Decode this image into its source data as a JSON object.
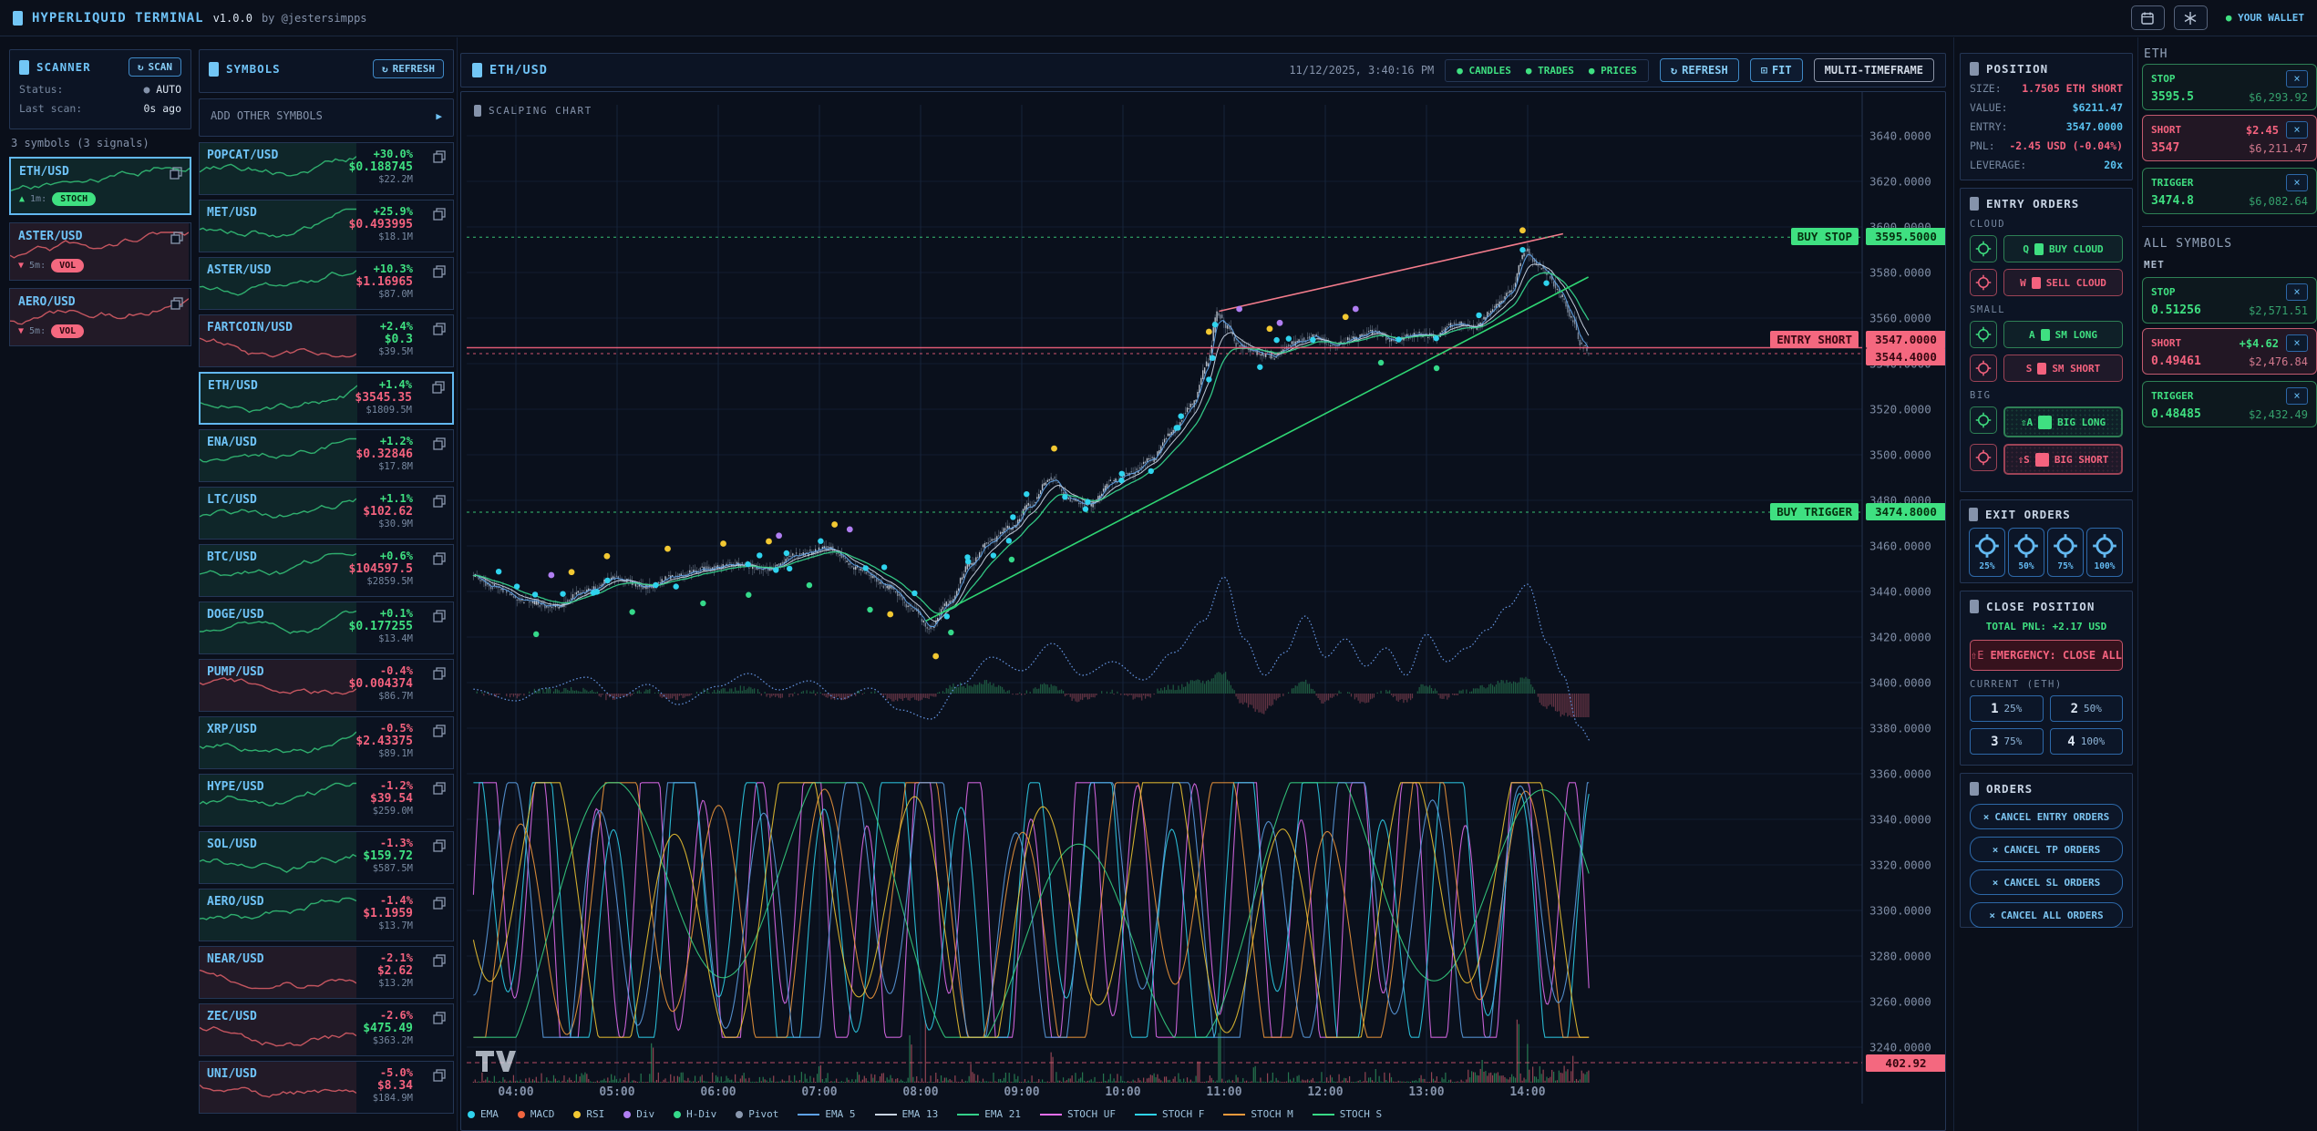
{
  "colors": {
    "accent": "#72c6f5",
    "green": "#3fe081",
    "red": "#f4627e",
    "cyan": "#59c2f0"
  },
  "icons": {
    "refresh": "↻",
    "play": "▶",
    "up_triangle": "▲",
    "down_triangle": "▼",
    "close": "×",
    "dot": "●",
    "fit": "⊡"
  },
  "header": {
    "title": "HYPERLIQUID TERMINAL",
    "version": "v1.0.0",
    "byline": "by @jestersimpps",
    "wallet_label": "YOUR WALLET"
  },
  "scanner": {
    "title": "SCANNER",
    "scan_button": "SCAN",
    "status_label": "Status:",
    "status_value": "AUTO",
    "last_scan_label": "Last scan:",
    "last_scan_value": "0s ago",
    "summary": "3 symbols (3 signals)",
    "items": [
      {
        "symbol": "ETH/USD",
        "dir": "up",
        "timeframe": "1m:",
        "signal": "STOCH",
        "signal_color": "green",
        "spark": "green",
        "selected": true
      },
      {
        "symbol": "ASTER/USD",
        "dir": "down",
        "timeframe": "5m:",
        "signal": "VOL",
        "signal_color": "red",
        "spark": "red",
        "selected": false
      },
      {
        "symbol": "AERO/USD",
        "dir": "down",
        "timeframe": "5m:",
        "signal": "VOL",
        "signal_color": "red",
        "spark": "red",
        "selected": false
      }
    ]
  },
  "symbols": {
    "title": "SYMBOLS",
    "refresh_button": "REFRESH",
    "add_row": "ADD OTHER SYMBOLS",
    "items": [
      {
        "sym": "POPCAT/USD",
        "chg": "+30.0%",
        "chg_c": "g",
        "price": "$0.188745",
        "price_c": "g",
        "vol": "$22.2M",
        "spark": "green",
        "sel": false
      },
      {
        "sym": "MET/USD",
        "chg": "+25.9%",
        "chg_c": "g",
        "price": "$0.493995",
        "price_c": "r",
        "vol": "$18.1M",
        "spark": "green",
        "sel": false
      },
      {
        "sym": "ASTER/USD",
        "chg": "+10.3%",
        "chg_c": "g",
        "price": "$1.16965",
        "price_c": "r",
        "vol": "$87.0M",
        "spark": "green",
        "sel": false
      },
      {
        "sym": "FARTCOIN/USD",
        "chg": "+2.4%",
        "chg_c": "g",
        "price": "$0.3",
        "price_c": "g",
        "vol": "$39.5M",
        "spark": "red",
        "sel": false
      },
      {
        "sym": "ETH/USD",
        "chg": "+1.4%",
        "chg_c": "g",
        "price": "$3545.35",
        "price_c": "r",
        "vol": "$1809.5M",
        "spark": "green",
        "sel": true
      },
      {
        "sym": "ENA/USD",
        "chg": "+1.2%",
        "chg_c": "g",
        "price": "$0.32846",
        "price_c": "r",
        "vol": "$17.8M",
        "spark": "green",
        "sel": false
      },
      {
        "sym": "LTC/USD",
        "chg": "+1.1%",
        "chg_c": "g",
        "price": "$102.62",
        "price_c": "r",
        "vol": "$30.9M",
        "spark": "green",
        "sel": false
      },
      {
        "sym": "BTC/USD",
        "chg": "+0.6%",
        "chg_c": "g",
        "price": "$104597.5",
        "price_c": "r",
        "vol": "$2859.5M",
        "spark": "green",
        "sel": false
      },
      {
        "sym": "DOGE/USD",
        "chg": "+0.1%",
        "chg_c": "g",
        "price": "$0.177255",
        "price_c": "g",
        "vol": "$13.4M",
        "spark": "green",
        "sel": false
      },
      {
        "sym": "PUMP/USD",
        "chg": "-0.4%",
        "chg_c": "r",
        "price": "$0.004374",
        "price_c": "r",
        "vol": "$86.7M",
        "spark": "red",
        "sel": false
      },
      {
        "sym": "XRP/USD",
        "chg": "-0.5%",
        "chg_c": "r",
        "price": "$2.43375",
        "price_c": "r",
        "vol": "$89.1M",
        "spark": "green",
        "sel": false
      },
      {
        "sym": "HYPE/USD",
        "chg": "-1.2%",
        "chg_c": "r",
        "price": "$39.54",
        "price_c": "r",
        "vol": "$259.0M",
        "spark": "green",
        "sel": false
      },
      {
        "sym": "SOL/USD",
        "chg": "-1.3%",
        "chg_c": "r",
        "price": "$159.72",
        "price_c": "g",
        "vol": "$587.5M",
        "spark": "green",
        "sel": false
      },
      {
        "sym": "AERO/USD",
        "chg": "-1.4%",
        "chg_c": "r",
        "price": "$1.1959",
        "price_c": "r",
        "vol": "$13.7M",
        "spark": "green",
        "sel": false
      },
      {
        "sym": "NEAR/USD",
        "chg": "-2.1%",
        "chg_c": "r",
        "price": "$2.62",
        "price_c": "r",
        "vol": "$13.2M",
        "spark": "red",
        "sel": false
      },
      {
        "sym": "ZEC/USD",
        "chg": "-2.6%",
        "chg_c": "r",
        "price": "$475.49",
        "price_c": "g",
        "vol": "$363.2M",
        "spark": "red",
        "sel": false
      },
      {
        "sym": "UNI/USD",
        "chg": "-5.0%",
        "chg_c": "r",
        "price": "$8.34",
        "price_c": "r",
        "vol": "$184.9M",
        "spark": "red",
        "sel": false
      }
    ]
  },
  "chart": {
    "symbol": "ETH/USD",
    "subtitle": "SCALPING CHART",
    "timestamp": "11/12/2025, 3:40:16 PM",
    "toggles": [
      "CANDLES",
      "TRADES",
      "PRICES"
    ],
    "refresh_button": "REFRESH",
    "fit_button": "FIT",
    "mtf_button": "MULTI-TIMEFRAME",
    "legend": [
      {
        "label": "EMA",
        "swatch": "dot",
        "color": "#2fd3ee"
      },
      {
        "label": "MACD",
        "swatch": "dot",
        "color": "#f0653f"
      },
      {
        "label": "RSI",
        "swatch": "dot",
        "color": "#f2c832"
      },
      {
        "label": "Div",
        "swatch": "dot",
        "color": "#b07ef2"
      },
      {
        "label": "H-Div",
        "swatch": "dot",
        "color": "#35d98a"
      },
      {
        "label": "Pivot",
        "swatch": "dot",
        "color": "#8a98ae"
      },
      {
        "label": "EMA 5",
        "swatch": "line",
        "color": "#5ea2e8"
      },
      {
        "label": "EMA 13",
        "swatch": "line",
        "color": "#c9d4e2"
      },
      {
        "label": "EMA 21",
        "swatch": "line",
        "color": "#35d08a"
      },
      {
        "label": "STOCH UF",
        "swatch": "line",
        "color": "#e86ef5"
      },
      {
        "label": "STOCH F",
        "swatch": "line",
        "color": "#2fd3ee"
      },
      {
        "label": "STOCH M",
        "swatch": "line",
        "color": "#f59a3c"
      },
      {
        "label": "STOCH S",
        "swatch": "line",
        "color": "#38d986"
      }
    ]
  },
  "chart_data": {
    "type": "candlestick",
    "symbol": "ETH/USD",
    "timeframe_minutes": 1,
    "y_axis": {
      "min": 3240,
      "max": 3640,
      "step": 20,
      "tick_labels": [
        "3640.0000",
        "3620.0000",
        "3600.0000",
        "3580.0000",
        "3560.0000",
        "3540.0000",
        "3520.0000",
        "3500.0000",
        "3480.0000",
        "3460.0000",
        "3440.0000",
        "3420.0000",
        "3400.0000",
        "3380.0000",
        "3360.0000",
        "3340.0000",
        "3320.0000",
        "3300.0000",
        "3280.0000",
        "3260.0000",
        "3240.0000"
      ]
    },
    "x_axis": {
      "hours": [
        "04:00",
        "05:00",
        "06:00",
        "07:00",
        "08:00",
        "09:00",
        "10:00",
        "11:00",
        "12:00",
        "13:00",
        "14:00"
      ]
    },
    "price_lines": [
      {
        "label": "BUY STOP",
        "value_label": "3595.5000",
        "price": 3595.5,
        "color": "green",
        "style": "dotted"
      },
      {
        "label": "ENTRY SHORT",
        "value_label": "3547.0000",
        "price": 3547.0,
        "color": "red",
        "style": "solid"
      },
      {
        "label": "",
        "value_label": "3544.4000",
        "price": 3544.4,
        "color": "red",
        "style": "dotted"
      },
      {
        "label": "BUY TRIGGER",
        "value_label": "3474.8000",
        "price": 3474.8,
        "color": "green",
        "style": "dotted"
      }
    ],
    "bottom_line": {
      "value_label": "402.92",
      "color": "red",
      "style": "dashed"
    },
    "panes": [
      "price",
      "macd",
      "stochastic",
      "volume"
    ],
    "price_path": [
      [
        3.55,
        3448
      ],
      [
        3.8,
        3442
      ],
      [
        4.1,
        3436
      ],
      [
        4.4,
        3433
      ],
      [
        4.7,
        3440
      ],
      [
        5.0,
        3446
      ],
      [
        5.3,
        3442
      ],
      [
        5.6,
        3447
      ],
      [
        5.9,
        3450
      ],
      [
        6.2,
        3452
      ],
      [
        6.5,
        3450
      ],
      [
        6.8,
        3456
      ],
      [
        7.1,
        3459
      ],
      [
        7.4,
        3450
      ],
      [
        7.7,
        3442
      ],
      [
        7.95,
        3432
      ],
      [
        8.1,
        3424
      ],
      [
        8.3,
        3435
      ],
      [
        8.5,
        3452
      ],
      [
        8.7,
        3462
      ],
      [
        8.9,
        3468
      ],
      [
        9.1,
        3478
      ],
      [
        9.3,
        3490
      ],
      [
        9.5,
        3480
      ],
      [
        9.7,
        3478
      ],
      [
        9.9,
        3488
      ],
      [
        10.1,
        3492
      ],
      [
        10.3,
        3498
      ],
      [
        10.5,
        3510
      ],
      [
        10.7,
        3522
      ],
      [
        10.85,
        3540
      ],
      [
        10.95,
        3562
      ],
      [
        11.05,
        3556
      ],
      [
        11.15,
        3548
      ],
      [
        11.3,
        3545
      ],
      [
        11.5,
        3543
      ],
      [
        11.7,
        3549
      ],
      [
        11.9,
        3552
      ],
      [
        12.1,
        3548
      ],
      [
        12.3,
        3551
      ],
      [
        12.5,
        3554
      ],
      [
        12.7,
        3550
      ],
      [
        12.9,
        3553
      ],
      [
        13.1,
        3552
      ],
      [
        13.3,
        3558
      ],
      [
        13.5,
        3556
      ],
      [
        13.7,
        3565
      ],
      [
        13.85,
        3572
      ],
      [
        14.0,
        3590
      ],
      [
        14.1,
        3584
      ],
      [
        14.2,
        3580
      ],
      [
        14.35,
        3570
      ],
      [
        14.45,
        3560
      ],
      [
        14.55,
        3548
      ],
      [
        14.65,
        3544
      ]
    ],
    "trend_lines": [
      {
        "from": [
          8.05,
          3427
        ],
        "to": [
          14.6,
          3578
        ],
        "color": "#2fd673"
      },
      {
        "from": [
          10.95,
          3563
        ],
        "to": [
          14.35,
          3597
        ],
        "color": "#f47c8c"
      }
    ]
  },
  "position": {
    "title": "POSITION",
    "rows": [
      {
        "label": "SIZE:",
        "value": "1.7505 ETH SHORT",
        "color": "red"
      },
      {
        "label": "VALUE:",
        "value": "$6211.47",
        "color": "cyan"
      },
      {
        "label": "ENTRY:",
        "value": "3547.0000",
        "color": "cyan"
      },
      {
        "label": "PNL:",
        "value": "-2.45 USD (-0.04%)",
        "color": "red"
      },
      {
        "label": "LEVERAGE:",
        "value": "20x",
        "color": "cyan"
      }
    ]
  },
  "entry_orders": {
    "title": "ENTRY ORDERS",
    "groups": [
      {
        "label": "CLOUD",
        "big": false,
        "rows": [
          {
            "key": "Q",
            "label": "BUY CLOUD",
            "side": "green"
          },
          {
            "key": "W",
            "label": "SELL CLOUD",
            "side": "red"
          }
        ]
      },
      {
        "label": "SMALL",
        "big": false,
        "rows": [
          {
            "key": "A",
            "label": "SM LONG",
            "side": "green"
          },
          {
            "key": "S",
            "label": "SM SHORT",
            "side": "red"
          }
        ]
      },
      {
        "label": "BIG",
        "big": true,
        "rows": [
          {
            "key": "⇧A",
            "label": "BIG LONG",
            "side": "green"
          },
          {
            "key": "⇧S",
            "label": "BIG SHORT",
            "side": "red"
          }
        ]
      }
    ]
  },
  "exit_orders": {
    "title": "EXIT ORDERS",
    "percents": [
      "25%",
      "50%",
      "75%",
      "100%"
    ]
  },
  "close_position": {
    "title": "CLOSE POSITION",
    "total_pnl": "TOTAL PNL: +2.17 USD",
    "emergency_key": "⇧E",
    "emergency_label": "EMERGENCY: CLOSE ALL",
    "current_label": "CURRENT (ETH)",
    "buttons": [
      {
        "key": "1",
        "label": "25%"
      },
      {
        "key": "2",
        "label": "50%"
      },
      {
        "key": "3",
        "label": "75%"
      },
      {
        "key": "4",
        "label": "100%"
      }
    ]
  },
  "orders": {
    "title": "ORDERS",
    "buttons": [
      "CANCEL ENTRY ORDERS",
      "CANCEL TP ORDERS",
      "CANCEL SL ORDERS",
      "CANCEL ALL ORDERS"
    ]
  },
  "eth_orders": {
    "title": "ETH",
    "cards": [
      {
        "type": "STOP",
        "side": "green",
        "pnl": "",
        "pnl_color": "",
        "price": "3595.5",
        "usd": "$6,293.92"
      },
      {
        "type": "SHORT",
        "side": "red",
        "pnl": "$2.45",
        "pnl_color": "red",
        "price": "3547",
        "usd": "$6,211.47"
      },
      {
        "type": "TRIGGER",
        "side": "green",
        "pnl": "",
        "pnl_color": "",
        "price": "3474.8",
        "usd": "$6,082.64"
      }
    ]
  },
  "all_symbols": {
    "title": "ALL SYMBOLS",
    "symbol": "MET",
    "cards": [
      {
        "type": "STOP",
        "side": "green",
        "pnl": "",
        "pnl_color": "",
        "price": "0.51256",
        "usd": "$2,571.51"
      },
      {
        "type": "SHORT",
        "side": "red",
        "pnl": "+$4.62",
        "pnl_color": "green",
        "price": "0.49461",
        "usd": "$2,476.84"
      },
      {
        "type": "TRIGGER",
        "side": "green",
        "pnl": "",
        "pnl_color": "",
        "price": "0.48485",
        "usd": "$2,432.49"
      }
    ]
  }
}
